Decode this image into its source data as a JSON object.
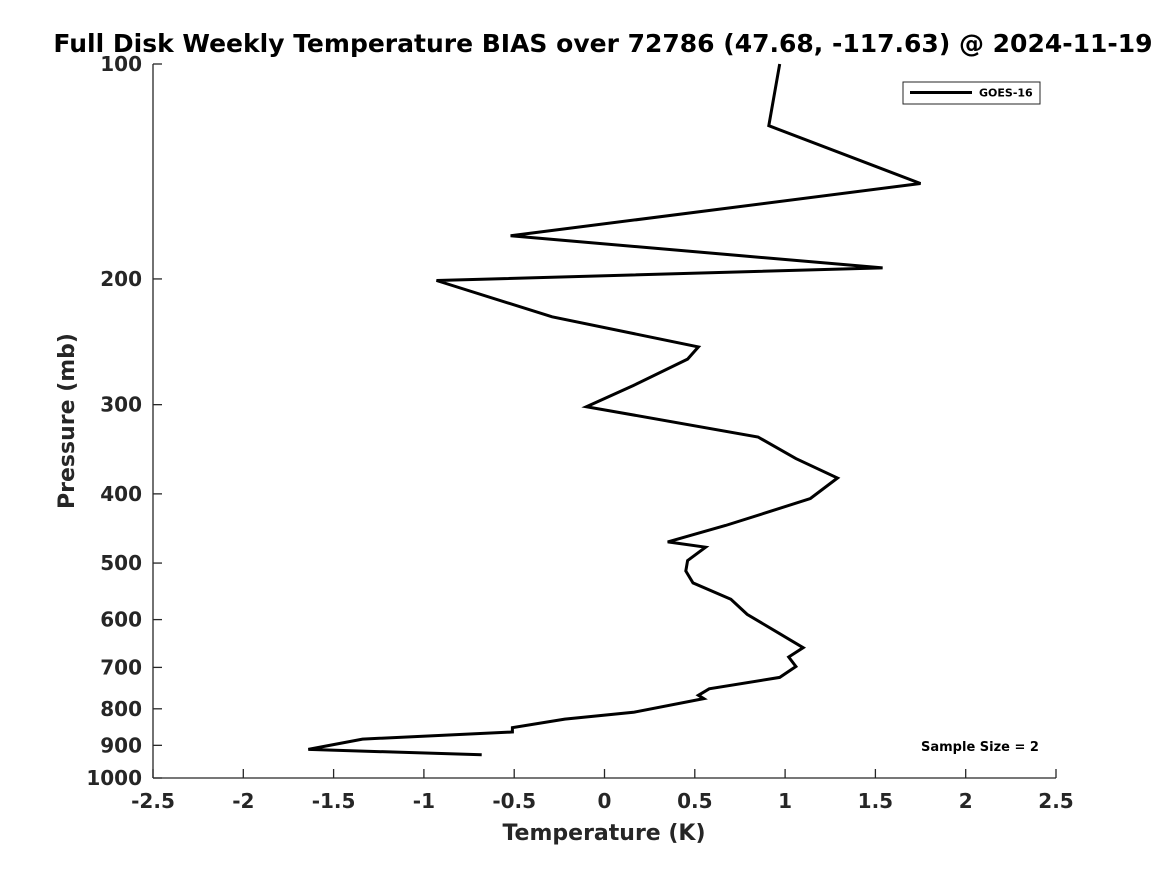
{
  "chart_data": {
    "type": "line",
    "title": "Full Disk Weekly Temperature BIAS over 72786 (47.68, -117.63) @ 2024-11-19",
    "xlabel": "Temperature (K)",
    "ylabel": "Pressure (mb)",
    "xlim": [
      -2.5,
      2.5
    ],
    "ylim": [
      100,
      1000
    ],
    "y_scale": "log",
    "y_reversed": true,
    "x_ticks": [
      -2.5,
      -2,
      -1.5,
      -1,
      -0.5,
      0,
      0.5,
      1,
      1.5,
      2,
      2.5
    ],
    "x_tick_labels": [
      "-2.5",
      "-2",
      "-1.5",
      "-1",
      "-0.5",
      "0",
      "0.5",
      "1",
      "1.5",
      "2",
      "2.5"
    ],
    "y_ticks": [
      100,
      200,
      300,
      400,
      500,
      600,
      700,
      800,
      900,
      1000
    ],
    "y_tick_labels": [
      "100",
      "200",
      "300",
      "400",
      "500",
      "600",
      "700",
      "800",
      "900",
      "1000"
    ],
    "grid": false,
    "legend_position": "top-right",
    "series": [
      {
        "name": "GOES-16",
        "color": "#000000",
        "x": [
          0.97,
          0.91,
          1.75,
          -0.52,
          1.54,
          -0.93,
          -0.29,
          0.52,
          0.46,
          0.16,
          -0.1,
          0.85,
          1.06,
          1.29,
          1.14,
          0.92,
          0.67,
          0.35,
          0.56,
          0.46,
          0.45,
          0.49,
          0.7,
          0.79,
          0.97,
          1.1,
          1.02,
          1.06,
          0.97,
          0.58,
          0.52,
          0.55,
          0.16,
          -0.22,
          -0.51,
          -0.51,
          -1.34,
          -1.64,
          -0.68
        ],
        "y": [
          100,
          122,
          147,
          174,
          193,
          201,
          226,
          249,
          259,
          282,
          302,
          333,
          357,
          380,
          406,
          423,
          443,
          467,
          475,
          496,
          513,
          533,
          562,
          590,
          628,
          657,
          677,
          698,
          723,
          750,
          766,
          774,
          809,
          827,
          850,
          862,
          882,
          912,
          928
        ]
      }
    ],
    "annotations": [
      "Sample Size = 2"
    ]
  }
}
